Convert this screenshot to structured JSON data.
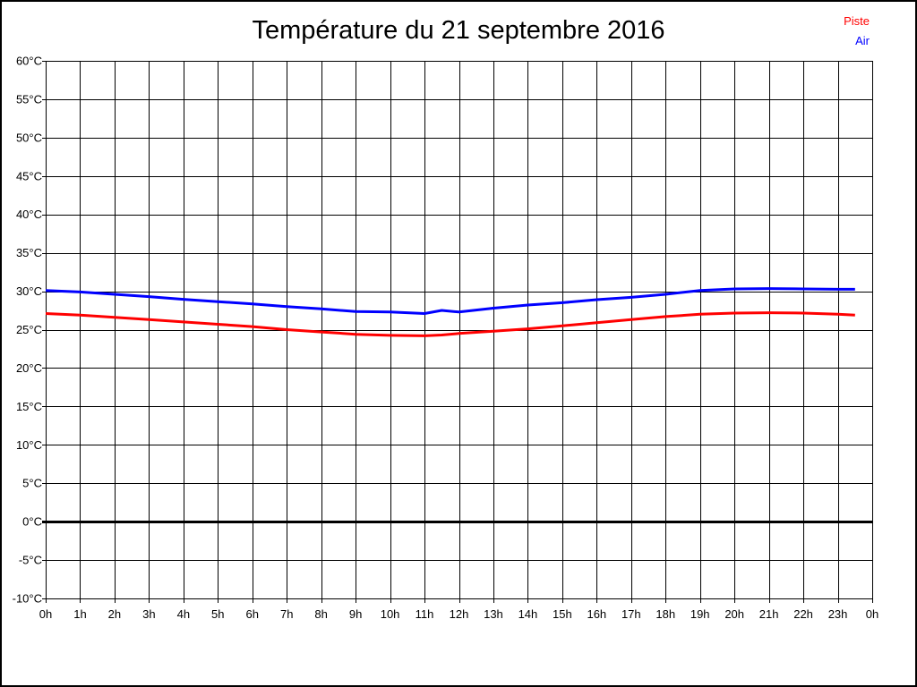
{
  "window": {
    "background_color": "#ffffff",
    "border_color": "#000000"
  },
  "title": "Température du 21 septembre 2016",
  "legend": {
    "position": "top-right",
    "items": [
      {
        "label": "Piste",
        "color": "#ff0000"
      },
      {
        "label": "Air",
        "color": "#0000ff"
      }
    ]
  },
  "chart_data": {
    "type": "line",
    "title": "Température du 21 septembre 2016",
    "xlabel": "",
    "ylabel": "",
    "x_unit": "hour of day",
    "y_unit": "°C",
    "xlim": [
      0,
      24
    ],
    "ylim": [
      -10,
      60
    ],
    "grid": "on",
    "grid_color": "#000000",
    "zero_line": {
      "value": 0,
      "color": "#000000",
      "width": 3
    },
    "x_tick_values": [
      0,
      1,
      2,
      3,
      4,
      5,
      6,
      7,
      8,
      9,
      10,
      11,
      12,
      13,
      14,
      15,
      16,
      17,
      18,
      19,
      20,
      21,
      22,
      23,
      24
    ],
    "x_tick_labels": [
      "0h",
      "1h",
      "2h",
      "3h",
      "4h",
      "5h",
      "6h",
      "7h",
      "8h",
      "9h",
      "10h",
      "11h",
      "12h",
      "13h",
      "14h",
      "15h",
      "16h",
      "17h",
      "18h",
      "19h",
      "20h",
      "21h",
      "22h",
      "23h",
      "0h"
    ],
    "y_tick_values": [
      60,
      55,
      50,
      45,
      40,
      35,
      30,
      25,
      20,
      15,
      10,
      5,
      0,
      -5,
      -10
    ],
    "y_tick_labels": [
      "60°C",
      "55°C",
      "50°C",
      "45°C",
      "40°C",
      "35°C",
      "30°C",
      "25°C",
      "20°C",
      "15°C",
      "10°C",
      "5°C",
      "0°C",
      "-5°C",
      "-10°C"
    ],
    "x": [
      0,
      1,
      2,
      3,
      4,
      5,
      6,
      7,
      8,
      9,
      10,
      11,
      11.5,
      12,
      13,
      14,
      15,
      16,
      17,
      18,
      19,
      20,
      21,
      22,
      23,
      23.5
    ],
    "series": [
      {
        "name": "Piste",
        "color": "#ff0000",
        "line_width": 3,
        "values": [
          27.1,
          26.9,
          26.6,
          26.3,
          26.0,
          25.7,
          25.4,
          25.0,
          24.7,
          24.4,
          24.25,
          24.2,
          24.3,
          24.5,
          24.8,
          25.1,
          25.5,
          25.9,
          26.3,
          26.7,
          27.0,
          27.15,
          27.2,
          27.15,
          27.0,
          26.9
        ]
      },
      {
        "name": "Air",
        "color": "#0000ff",
        "line_width": 3,
        "values": [
          30.1,
          29.9,
          29.6,
          29.3,
          28.95,
          28.65,
          28.35,
          28.0,
          27.7,
          27.35,
          27.3,
          27.1,
          27.5,
          27.3,
          27.8,
          28.2,
          28.5,
          28.9,
          29.2,
          29.6,
          30.1,
          30.3,
          30.35,
          30.3,
          30.25,
          30.25
        ]
      }
    ],
    "legend_position": "top-right"
  }
}
